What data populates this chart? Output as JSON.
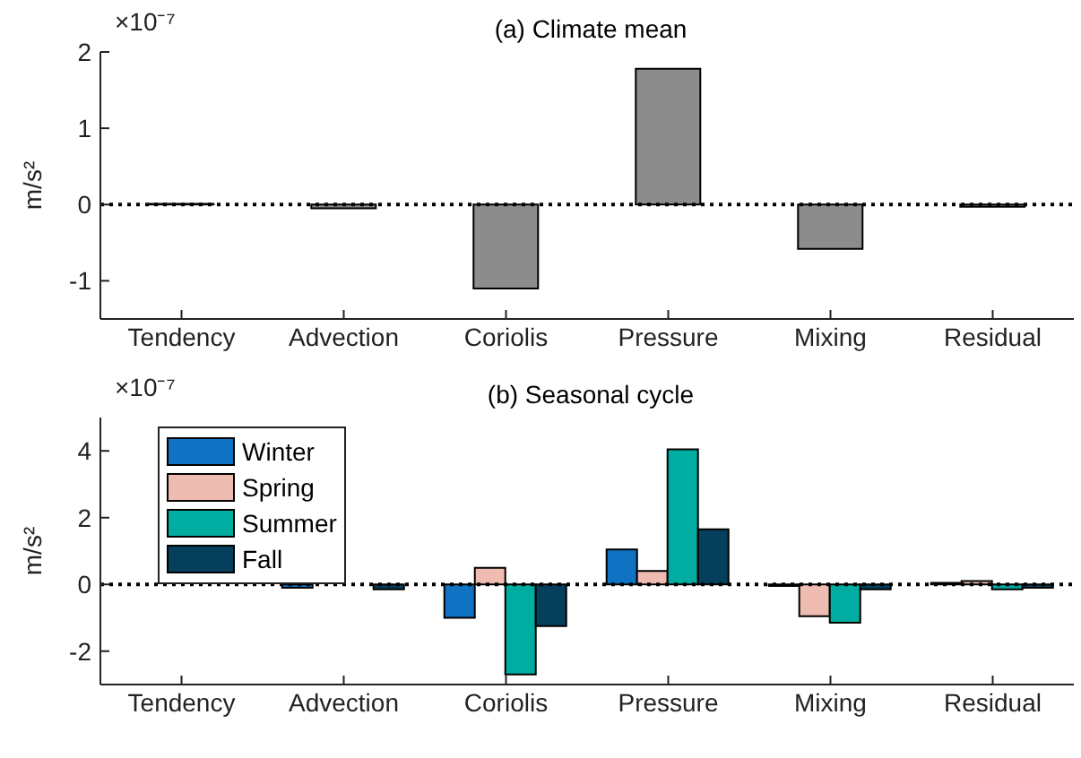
{
  "chart_data": [
    {
      "type": "bar",
      "title": "(a) Climate mean",
      "ylabel": "m/s²",
      "annotations": [
        "×10⁻⁷"
      ],
      "categories": [
        "Tendency",
        "Advection",
        "Coriolis",
        "Pressure",
        "Mixing",
        "Residual"
      ],
      "series": [
        {
          "color": "#8c8c8c",
          "values": [
            0.01,
            -0.05,
            -1.1,
            1.78,
            -0.58,
            -0.03
          ]
        }
      ],
      "ylim": [
        -1.5,
        2
      ],
      "yticks": [
        -1,
        0,
        1,
        2
      ],
      "grid": false,
      "legend": false,
      "ref_lines": [
        {
          "axis": "y",
          "value": 0,
          "color": "#000000",
          "line_style": "dotted"
        }
      ]
    },
    {
      "type": "bar",
      "title": "(b) Seasonal cycle",
      "ylabel": "m/s²",
      "annotations": [
        "×10⁻⁷"
      ],
      "categories": [
        "Tendency",
        "Advection",
        "Coriolis",
        "Pressure",
        "Mixing",
        "Residual"
      ],
      "series": [
        {
          "name": "Winter",
          "color": "#0f72c3",
          "values": [
            null,
            -0.1,
            -1.0,
            1.05,
            -0.05,
            0.05
          ]
        },
        {
          "name": "Spring",
          "color": "#eebcb0",
          "values": [
            null,
            0,
            0.5,
            0.4,
            -0.95,
            0.1
          ]
        },
        {
          "name": "Summer",
          "color": "#00ada0",
          "values": [
            null,
            0,
            -2.7,
            4.05,
            -1.15,
            -0.15
          ]
        },
        {
          "name": "Fall",
          "color": "#053f5c",
          "values": [
            null,
            -0.15,
            -1.25,
            1.65,
            -0.15,
            -0.1
          ]
        }
      ],
      "ylim": [
        -3,
        5
      ],
      "yticks": [
        -2,
        0,
        2,
        4
      ],
      "grid": false,
      "legend": "top left",
      "ref_lines": [
        {
          "axis": "y",
          "value": 0,
          "color": "#000000",
          "line_style": "dotted"
        }
      ]
    }
  ]
}
